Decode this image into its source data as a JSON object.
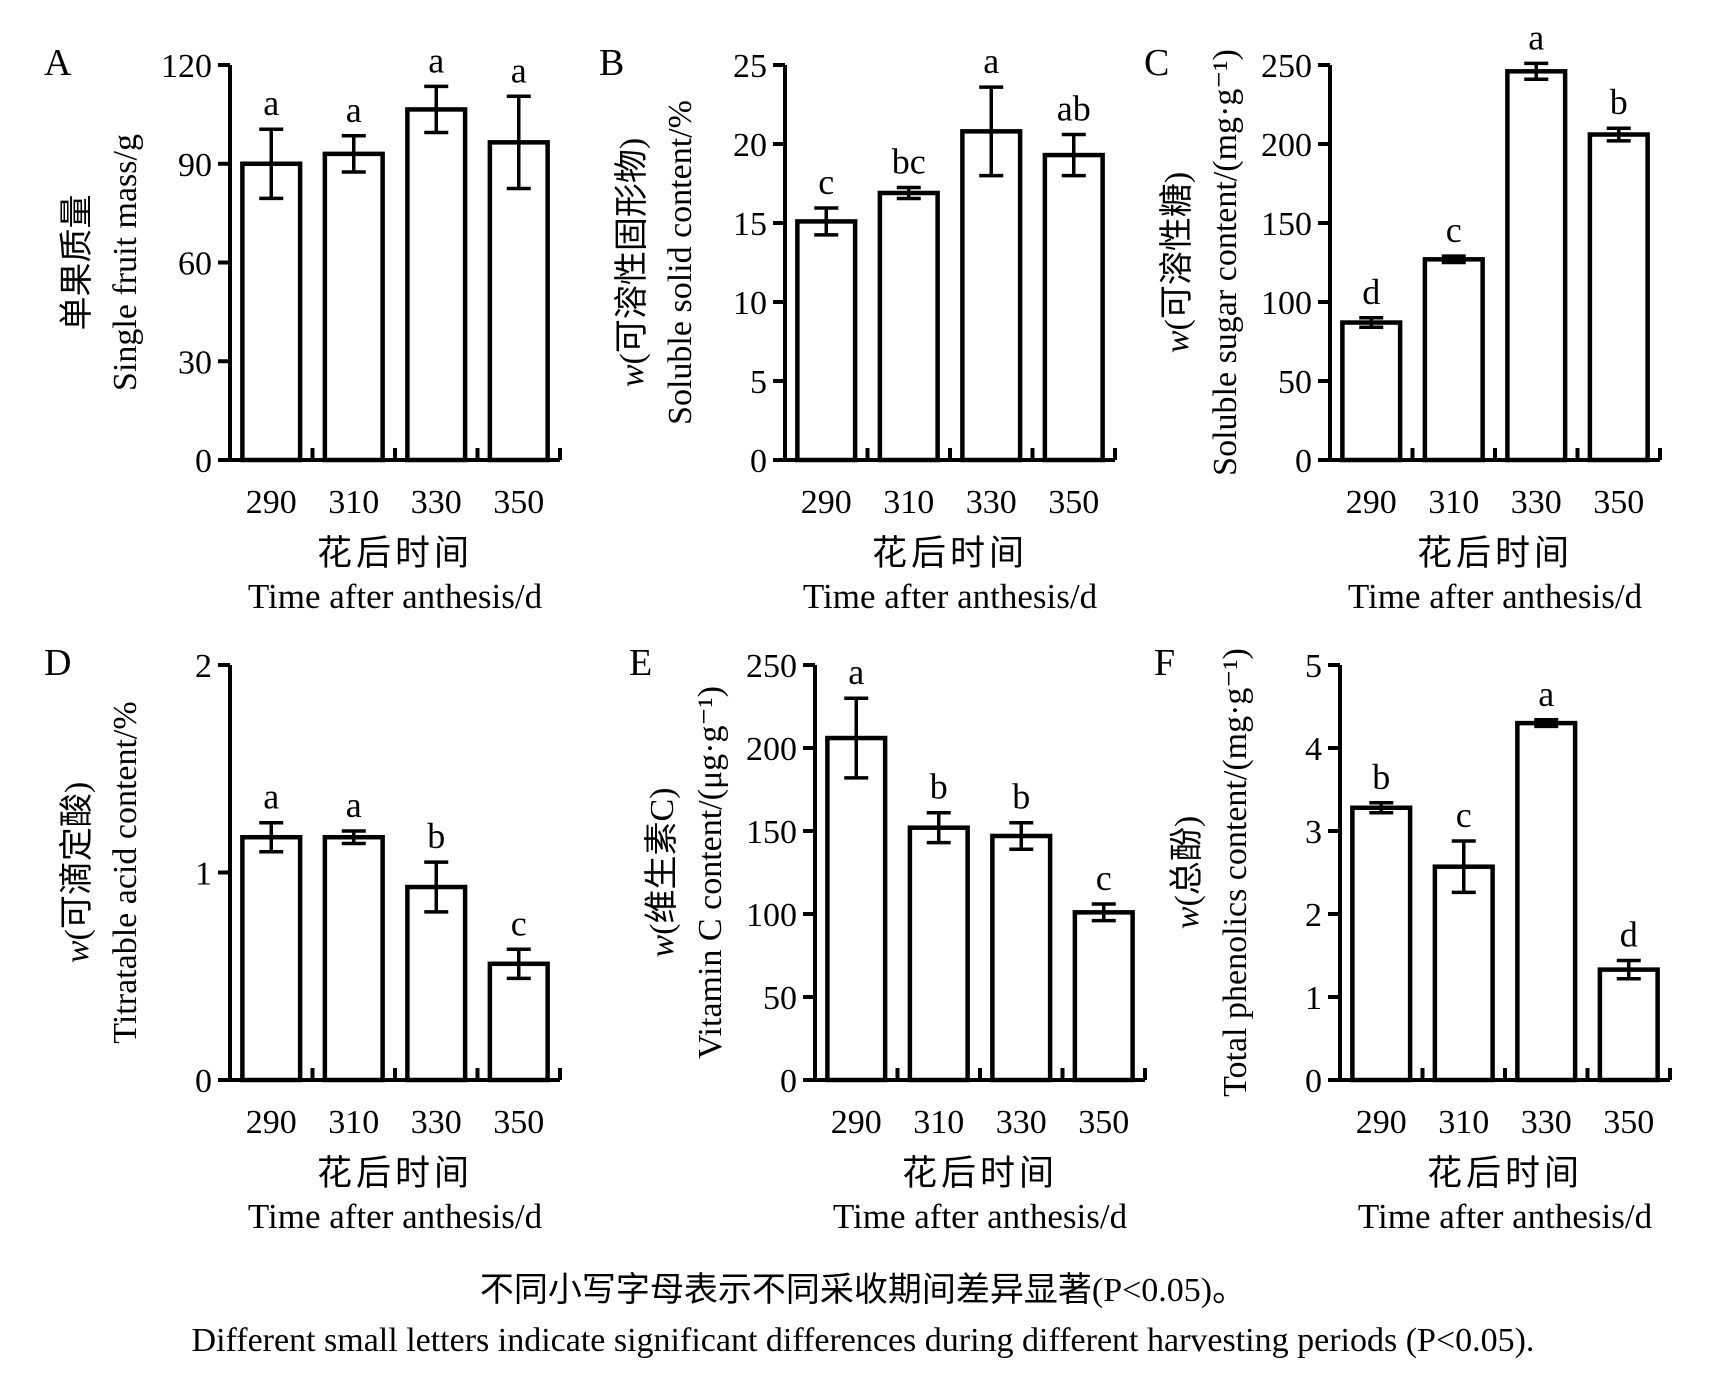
{
  "figure": {
    "caption_cn": "不同小写字母表示不同采收期间差异显著(P<0.05)。",
    "caption_en": "Different small letters indicate significant differences during different harvesting periods (P<0.05)."
  },
  "chart_data": [
    {
      "type": "bar",
      "panel": "A",
      "ylabel_cn": "单果质量",
      "ylabel_en": "Single fruit mass/g",
      "xlabel_cn": "花后时间",
      "xlabel_en": "Time after anthesis/d",
      "categories": [
        "290",
        "310",
        "330",
        "350"
      ],
      "values": [
        90,
        93,
        106.5,
        96.5
      ],
      "errors": [
        10.5,
        5.5,
        7,
        14
      ],
      "sig_letters": [
        "a",
        "a",
        "a",
        "a"
      ],
      "ylim": [
        0,
        120
      ],
      "yticks": [
        0,
        30,
        60,
        90,
        120
      ],
      "bar_fill": "#ffffff",
      "bar_stroke": "#000000",
      "grid": false
    },
    {
      "type": "bar",
      "panel": "B",
      "ylabel_cn": "w(可溶性固形物)",
      "ylabel_en": "Soluble solid content/%",
      "xlabel_cn": "花后时间",
      "xlabel_en": "Time after anthesis/d",
      "categories": [
        "290",
        "310",
        "330",
        "350"
      ],
      "values": [
        15.1,
        16.9,
        20.8,
        19.3
      ],
      "errors": [
        0.85,
        0.35,
        2.8,
        1.3
      ],
      "sig_letters": [
        "c",
        "bc",
        "a",
        "ab"
      ],
      "ylim": [
        0,
        25
      ],
      "yticks": [
        0,
        5,
        10,
        15,
        20,
        25
      ],
      "bar_fill": "#ffffff",
      "bar_stroke": "#000000",
      "grid": false
    },
    {
      "type": "bar",
      "panel": "C",
      "ylabel_cn": "w(可溶性糖)",
      "ylabel_en": "Soluble sugar content/(mg·g⁻¹)",
      "xlabel_cn": "花后时间",
      "xlabel_en": "Time after anthesis/d",
      "categories": [
        "290",
        "310",
        "330",
        "350"
      ],
      "values": [
        87,
        127,
        246,
        206
      ],
      "errors": [
        3,
        2,
        5,
        4
      ],
      "sig_letters": [
        "d",
        "c",
        "a",
        "b"
      ],
      "ylim": [
        0,
        250
      ],
      "yticks": [
        0,
        50,
        100,
        150,
        200,
        250
      ],
      "bar_fill": "#ffffff",
      "bar_stroke": "#000000",
      "grid": false
    },
    {
      "type": "bar",
      "panel": "D",
      "ylabel_cn": "w(可滴定酸)",
      "ylabel_en": "Titratable acid content/%",
      "xlabel_cn": "花后时间",
      "xlabel_en": "Time after anthesis/d",
      "categories": [
        "290",
        "310",
        "330",
        "350"
      ],
      "values": [
        1.17,
        1.17,
        0.93,
        0.56
      ],
      "errors": [
        0.07,
        0.03,
        0.12,
        0.07
      ],
      "sig_letters": [
        "a",
        "a",
        "b",
        "c"
      ],
      "ylim": [
        0,
        2
      ],
      "yticks": [
        0,
        1,
        2
      ],
      "bar_fill": "#ffffff",
      "bar_stroke": "#000000",
      "grid": false
    },
    {
      "type": "bar",
      "panel": "E",
      "ylabel_cn": "w(维生素C)",
      "ylabel_en": "Vitamin C content/(μg·g⁻¹)",
      "xlabel_cn": "花后时间",
      "xlabel_en": "Time after anthesis/d",
      "categories": [
        "290",
        "310",
        "330",
        "350"
      ],
      "values": [
        206,
        152,
        147,
        101
      ],
      "errors": [
        24,
        9,
        8,
        5
      ],
      "sig_letters": [
        "a",
        "b",
        "b",
        "c"
      ],
      "ylim": [
        0,
        250
      ],
      "yticks": [
        0,
        50,
        100,
        150,
        200,
        250
      ],
      "bar_fill": "#ffffff",
      "bar_stroke": "#000000",
      "grid": false
    },
    {
      "type": "bar",
      "panel": "F",
      "ylabel_cn": "w(总酚)",
      "ylabel_en": "Total phenolics content/(mg·g⁻¹)",
      "xlabel_cn": "花后时间",
      "xlabel_en": "Time after anthesis/d",
      "categories": [
        "290",
        "310",
        "330",
        "350"
      ],
      "values": [
        3.28,
        2.57,
        4.3,
        1.33
      ],
      "errors": [
        0.06,
        0.31,
        0.04,
        0.11
      ],
      "sig_letters": [
        "b",
        "c",
        "a",
        "d"
      ],
      "ylim": [
        0,
        5
      ],
      "yticks": [
        0,
        1,
        2,
        3,
        4,
        5
      ],
      "bar_fill": "#ffffff",
      "bar_stroke": "#000000",
      "grid": false
    }
  ]
}
